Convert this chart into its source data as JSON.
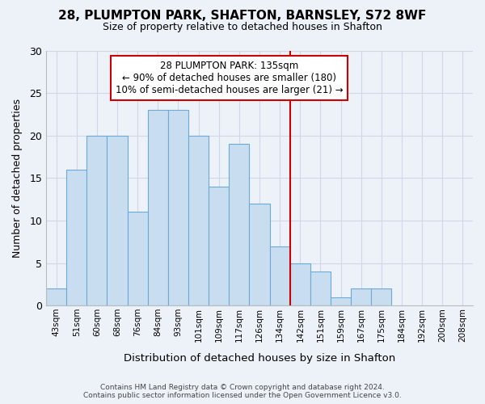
{
  "title_line1": "28, PLUMPTON PARK, SHAFTON, BARNSLEY, S72 8WF",
  "title_line2": "Size of property relative to detached houses in Shafton",
  "xlabel": "Distribution of detached houses by size in Shafton",
  "ylabel": "Number of detached properties",
  "categories": [
    "43sqm",
    "51sqm",
    "60sqm",
    "68sqm",
    "76sqm",
    "84sqm",
    "93sqm",
    "101sqm",
    "109sqm",
    "117sqm",
    "126sqm",
    "134sqm",
    "142sqm",
    "151sqm",
    "159sqm",
    "167sqm",
    "175sqm",
    "184sqm",
    "192sqm",
    "200sqm",
    "208sqm"
  ],
  "bar_heights": [
    2,
    16,
    20,
    20,
    11,
    23,
    23,
    20,
    14,
    19,
    12,
    7,
    5,
    4,
    1,
    2,
    2,
    0,
    0,
    0,
    0
  ],
  "bar_color": "#c8ddf0",
  "bar_edge_color": "#6aaad4",
  "grid_color": "#d0d8e8",
  "background_color": "#edf2f9",
  "vline_x": 11.5,
  "vline_color": "#cc0000",
  "annotation_text": "28 PLUMPTON PARK: 135sqm\n← 90% of detached houses are smaller (180)\n10% of semi-detached houses are larger (21) →",
  "ylim": [
    0,
    30
  ],
  "yticks": [
    0,
    5,
    10,
    15,
    20,
    25,
    30
  ],
  "footer_line1": "Contains HM Land Registry data © Crown copyright and database right 2024.",
  "footer_line2": "Contains public sector information licensed under the Open Government Licence v3.0."
}
